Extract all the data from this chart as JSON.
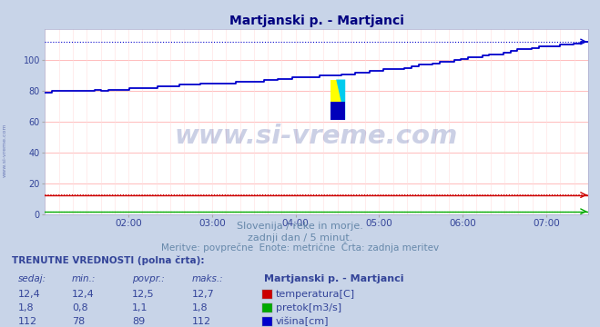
{
  "title": "Martjanski p. - Martjanci",
  "title_color": "#000080",
  "bg_color": "#c8d4e8",
  "plot_bg_color": "#ffffff",
  "xlabel": "",
  "ylabel": "",
  "ylim": [
    0,
    120
  ],
  "yticks": [
    0,
    20,
    40,
    60,
    80,
    100
  ],
  "xtick_labels": [
    "02:00",
    "03:00",
    "04:00",
    "05:00",
    "06:00",
    "07:00"
  ],
  "subtitle1": "Slovenija / reke in morje.",
  "subtitle2": "zadnji dan / 5 minut.",
  "subtitle3": "Meritve: povprečne  Enote: metrične  Črta: zadnja meritev",
  "subtitle_color": "#6688aa",
  "table_header": "TRENUTNE VREDNOSTI (polna črta):",
  "table_cols": [
    "sedaj:",
    "min.:",
    "povpr.:",
    "maks.:"
  ],
  "table_rows": [
    [
      "12,4",
      "12,4",
      "12,5",
      "12,7",
      "#cc0000",
      "temperatura[C]"
    ],
    [
      "1,8",
      "0,8",
      "1,1",
      "1,8",
      "#00aa00",
      "pretok[m3/s]"
    ],
    [
      "112",
      "78",
      "89",
      "112",
      "#0000cc",
      "višina[cm]"
    ]
  ],
  "table_color": "#334499",
  "watermark": "www.si-vreme.com",
  "watermark_color": "#334499",
  "watermark_alpha": 0.25,
  "temp_color": "#cc0000",
  "pretok_color": "#00aa00",
  "visina_color": "#0000cc",
  "visina_max": 112,
  "temp_max": 12.7,
  "pretok_max": 1.8,
  "temp_val": 12.5,
  "pretok_val": 1.8
}
